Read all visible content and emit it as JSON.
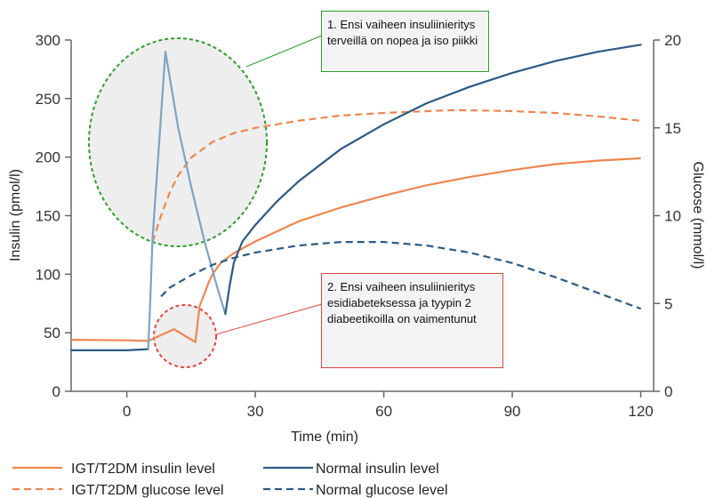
{
  "chart_data": {
    "type": "line",
    "xlabel": "Time (min)",
    "ylabel_left": "Insulin (pmol/l)",
    "ylabel_right": "Glucose (mmol/l)",
    "xlim": [
      -13,
      123
    ],
    "ylim_left": [
      0,
      300
    ],
    "ylim_right": [
      0,
      20
    ],
    "x_ticks": [
      0,
      30,
      60,
      90,
      120
    ],
    "y_left_ticks": [
      0,
      50,
      100,
      150,
      200,
      250,
      300
    ],
    "y_right_ticks": [
      0,
      5,
      10,
      15,
      20
    ],
    "grid": false,
    "legend_position": "bottom",
    "colors": {
      "igt": "#ee8650",
      "normal": "#2c5a86",
      "normal_spike": "#7da3c4",
      "green_callout": "#2e9e2e",
      "red_callout": "#e0463e"
    },
    "series": [
      {
        "name": "IGT/T2DM insulin level",
        "axis": "left",
        "style": "solid",
        "color": "#ee8650",
        "x": [
          -13,
          0,
          5,
          11,
          16,
          17,
          18,
          19,
          20,
          22,
          25,
          30,
          40,
          50,
          60,
          70,
          80,
          90,
          100,
          110,
          120
        ],
        "y": [
          44,
          43.5,
          43,
          53,
          42,
          73,
          82,
          92,
          100,
          110,
          118,
          128,
          145,
          157,
          167,
          176,
          183,
          189,
          194,
          197,
          199
        ]
      },
      {
        "name": "IGT/T2DM glucose level",
        "axis": "right",
        "style": "dashed",
        "color": "#ee8650",
        "x": [
          6,
          8,
          10,
          12,
          15,
          20,
          25,
          30,
          40,
          50,
          60,
          70,
          75,
          80,
          90,
          100,
          110,
          120
        ],
        "y": [
          8.5,
          10,
          11.3,
          12.3,
          13.3,
          14.2,
          14.7,
          15.0,
          15.4,
          15.7,
          15.85,
          15.95,
          16.0,
          16.0,
          15.95,
          15.85,
          15.65,
          15.4
        ]
      },
      {
        "name": "Normal insulin level",
        "axis": "left",
        "style": "solid",
        "color": "#2c5a86",
        "x": [
          -13,
          -5,
          0,
          5,
          5.5,
          6,
          9,
          12,
          15,
          18,
          21,
          23,
          24,
          25,
          27,
          30,
          35,
          40,
          50,
          60,
          70,
          80,
          90,
          100,
          110,
          120
        ],
        "y": [
          35,
          35,
          35,
          36,
          80,
          130,
          290,
          225,
          175,
          130,
          90,
          66,
          90,
          110,
          128,
          142,
          162,
          179,
          207,
          228,
          246,
          260,
          272,
          282,
          290,
          296
        ]
      },
      {
        "name": "Normal glucose level",
        "axis": "right",
        "style": "dashed",
        "color": "#2c5a86",
        "x": [
          8,
          10,
          15,
          20,
          25,
          30,
          40,
          50,
          55,
          60,
          70,
          80,
          90,
          100,
          110,
          120
        ],
        "y": [
          5.4,
          5.9,
          6.6,
          7.2,
          7.6,
          7.9,
          8.3,
          8.5,
          8.5,
          8.5,
          8.3,
          7.9,
          7.3,
          6.5,
          5.6,
          4.7
        ]
      }
    ]
  },
  "annotations": {
    "green_callout": "1. Ensi vaiheen insuliinieritys terveillä on nopea ja iso piikki",
    "red_callout": "2. Ensi vaiheen insuliinieritys esidiabeteksessa ja tyypin 2 diabeetikoilla on vaimentunut"
  }
}
